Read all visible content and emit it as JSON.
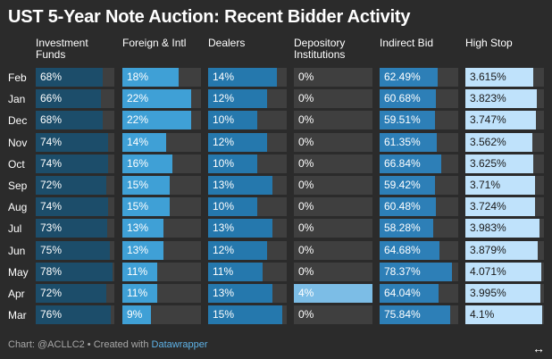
{
  "title": "UST 5-Year Note Auction: Recent Bidder Activity",
  "footer": {
    "credit": "Chart: @ACLLC2 • Created with ",
    "link": "Datawrapper"
  },
  "expand_icon": "↔",
  "chart_data": {
    "type": "table",
    "title": "UST 5-Year Note Auction: Recent Bidder Activity",
    "rows": [
      "Feb",
      "Jan",
      "Dec",
      "Nov",
      "Oct",
      "Sep",
      "Aug",
      "Jul",
      "Jun",
      "May",
      "Apr",
      "Mar"
    ],
    "columns": [
      {
        "name": "Investment Funds",
        "lines": [
          "Investment",
          "Funds"
        ],
        "color": "#1c4d6a",
        "max": 80,
        "values": [
          68,
          66,
          68,
          74,
          74,
          72,
          74,
          73,
          75,
          78,
          72,
          76
        ],
        "labels": [
          "68%",
          "66%",
          "68%",
          "74%",
          "74%",
          "72%",
          "74%",
          "73%",
          "75%",
          "78%",
          "72%",
          "76%"
        ]
      },
      {
        "name": "Foreign & Intl",
        "lines": [
          "Foreign & Intl"
        ],
        "color": "#3fa0d6",
        "max": 25,
        "values": [
          18,
          22,
          22,
          14,
          16,
          15,
          15,
          13,
          13,
          11,
          11,
          9
        ],
        "labels": [
          "18%",
          "22%",
          "22%",
          "14%",
          "16%",
          "15%",
          "15%",
          "13%",
          "13%",
          "11%",
          "11%",
          "9%"
        ]
      },
      {
        "name": "Dealers",
        "lines": [
          "Dealers"
        ],
        "color": "#2578ad",
        "max": 16,
        "values": [
          14,
          12,
          10,
          12,
          10,
          13,
          10,
          13,
          12,
          11,
          13,
          15
        ],
        "labels": [
          "14%",
          "12%",
          "10%",
          "12%",
          "10%",
          "13%",
          "10%",
          "13%",
          "12%",
          "11%",
          "13%",
          "15%"
        ]
      },
      {
        "name": "Depository Institutions",
        "lines": [
          "Depository",
          "Institutions"
        ],
        "color": "#7cbde6",
        "max": 4,
        "values": [
          0,
          0,
          0,
          0,
          0,
          0,
          0,
          0,
          0,
          0,
          4,
          0
        ],
        "labels": [
          "0%",
          "0%",
          "0%",
          "0%",
          "0%",
          "0%",
          "0%",
          "0%",
          "0%",
          "0%",
          "4%",
          "0%"
        ]
      },
      {
        "name": "Indirect Bid",
        "lines": [
          "Indirect Bid"
        ],
        "color": "#2d7fb7",
        "max": 85,
        "values": [
          62.49,
          60.68,
          59.51,
          61.35,
          66.84,
          59.42,
          60.48,
          58.28,
          64.68,
          78.37,
          64.04,
          75.84
        ],
        "labels": [
          "62.49%",
          "60.68%",
          "59.51%",
          "61.35%",
          "66.84%",
          "59.42%",
          "60.48%",
          "58.28%",
          "64.68%",
          "78.37%",
          "64.04%",
          "75.84%"
        ]
      },
      {
        "name": "High Stop",
        "lines": [
          "High Stop"
        ],
        "color": "#bfe2fb",
        "max": 4.2,
        "values": [
          3.615,
          3.823,
          3.747,
          3.562,
          3.625,
          3.71,
          3.724,
          3.983,
          3.879,
          4.071,
          3.995,
          4.1
        ],
        "labels": [
          "3.615%",
          "3.823%",
          "3.747%",
          "3.562%",
          "3.625%",
          "3.71%",
          "3.724%",
          "3.983%",
          "3.879%",
          "4.071%",
          "3.995%",
          "4.1%"
        ]
      }
    ]
  }
}
